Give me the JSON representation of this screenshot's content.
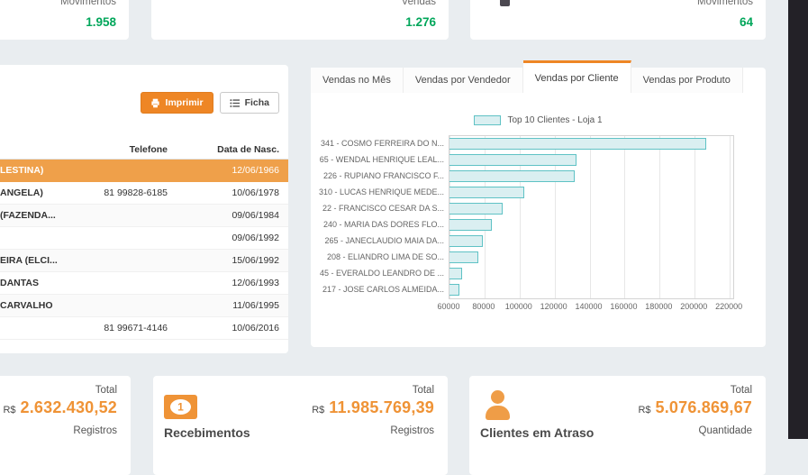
{
  "colors": {
    "page_bg": "#e9edf0",
    "accent_orange": "#ee8625",
    "value_orange": "#ef9336",
    "selected_row_orange": "#efa04a",
    "green": "#00a65a",
    "bar_fill": "#daeff1",
    "bar_border": "#5fc2c5",
    "dark_edge": "#232127"
  },
  "top_cards": [
    {
      "label": "Movimentos",
      "value": "1.958"
    },
    {
      "label": "Vendas",
      "value": "1.276"
    },
    {
      "label": "Movimentos",
      "value": "64"
    }
  ],
  "left_panel": {
    "print_button": "Imprimir",
    "ficha_button": "Ficha",
    "table": {
      "col_phone": "Telefone",
      "col_birth": "Data de Nasc.",
      "rows": [
        {
          "name": "LESTINA)",
          "phone": "",
          "birth": "12/06/1966",
          "selected": true
        },
        {
          "name": "ANGELA)",
          "phone": "81 99828-6185",
          "birth": "10/06/1978",
          "selected": false
        },
        {
          "name": "(FAZENDA...",
          "phone": "",
          "birth": "09/06/1984",
          "selected": false
        },
        {
          "name": "",
          "phone": "",
          "birth": "09/06/1992",
          "selected": false
        },
        {
          "name": "EIRA (ELCI...",
          "phone": "",
          "birth": "15/06/1992",
          "selected": false
        },
        {
          "name": "DANTAS",
          "phone": "",
          "birth": "12/06/1993",
          "selected": false
        },
        {
          "name": "CARVALHO",
          "phone": "",
          "birth": "11/06/1995",
          "selected": false
        },
        {
          "name": "",
          "phone": "81 99671-4146",
          "birth": "10/06/2016",
          "selected": false
        }
      ]
    }
  },
  "tabs": {
    "items": [
      {
        "label": "Vendas no Mês",
        "active": false
      },
      {
        "label": "Vendas por Vendedor",
        "active": false
      },
      {
        "label": "Vendas por Cliente",
        "active": true
      },
      {
        "label": "Vendas por Produto",
        "active": false
      }
    ]
  },
  "chart_data": {
    "type": "bar",
    "orientation": "horizontal",
    "legend_label": "Top 10 Clientes - Loja 1",
    "legend_position": "top",
    "grid": true,
    "categories": [
      "341 - COSMO FERREIRA DO N...",
      "65 - WENDAL HENRIQUE LEAL...",
      "226 - RUPIANO FRANCISCO F...",
      "310 - LUCAS HENRIQUE MEDE...",
      "22 - FRANCISCO CESAR DA S...",
      "240 - MARIA DAS DORES FLO...",
      "265 - JANECLAUDIO MAIA DA...",
      "208 - ELIANDRO LIMA DE SO...",
      "45 - EVERALDO LEANDRO DE ...",
      "217 - JOSE CARLOS ALMEIDA..."
    ],
    "values": [
      206500,
      132500,
      131500,
      102500,
      90500,
      84000,
      79000,
      76500,
      67000,
      65500
    ],
    "xticks": [
      60000,
      80000,
      100000,
      120000,
      140000,
      160000,
      180000,
      200000,
      220000
    ],
    "xlim": [
      60000,
      222000
    ]
  },
  "bottom_cards": [
    {
      "icon": null,
      "title": "",
      "total_label": "Total",
      "currency": "R$",
      "value": "2.632.430,52",
      "count_label": "Registros"
    },
    {
      "icon": "money-icon",
      "title": "Recebimentos",
      "total_label": "Total",
      "currency": "R$",
      "value": "11.985.769,39",
      "count_label": "Registros"
    },
    {
      "icon": "person-icon",
      "title": "Clientes em Atraso",
      "total_label": "Total",
      "currency": "R$",
      "value": "5.076.869,67",
      "count_label": "Quantidade"
    }
  ]
}
